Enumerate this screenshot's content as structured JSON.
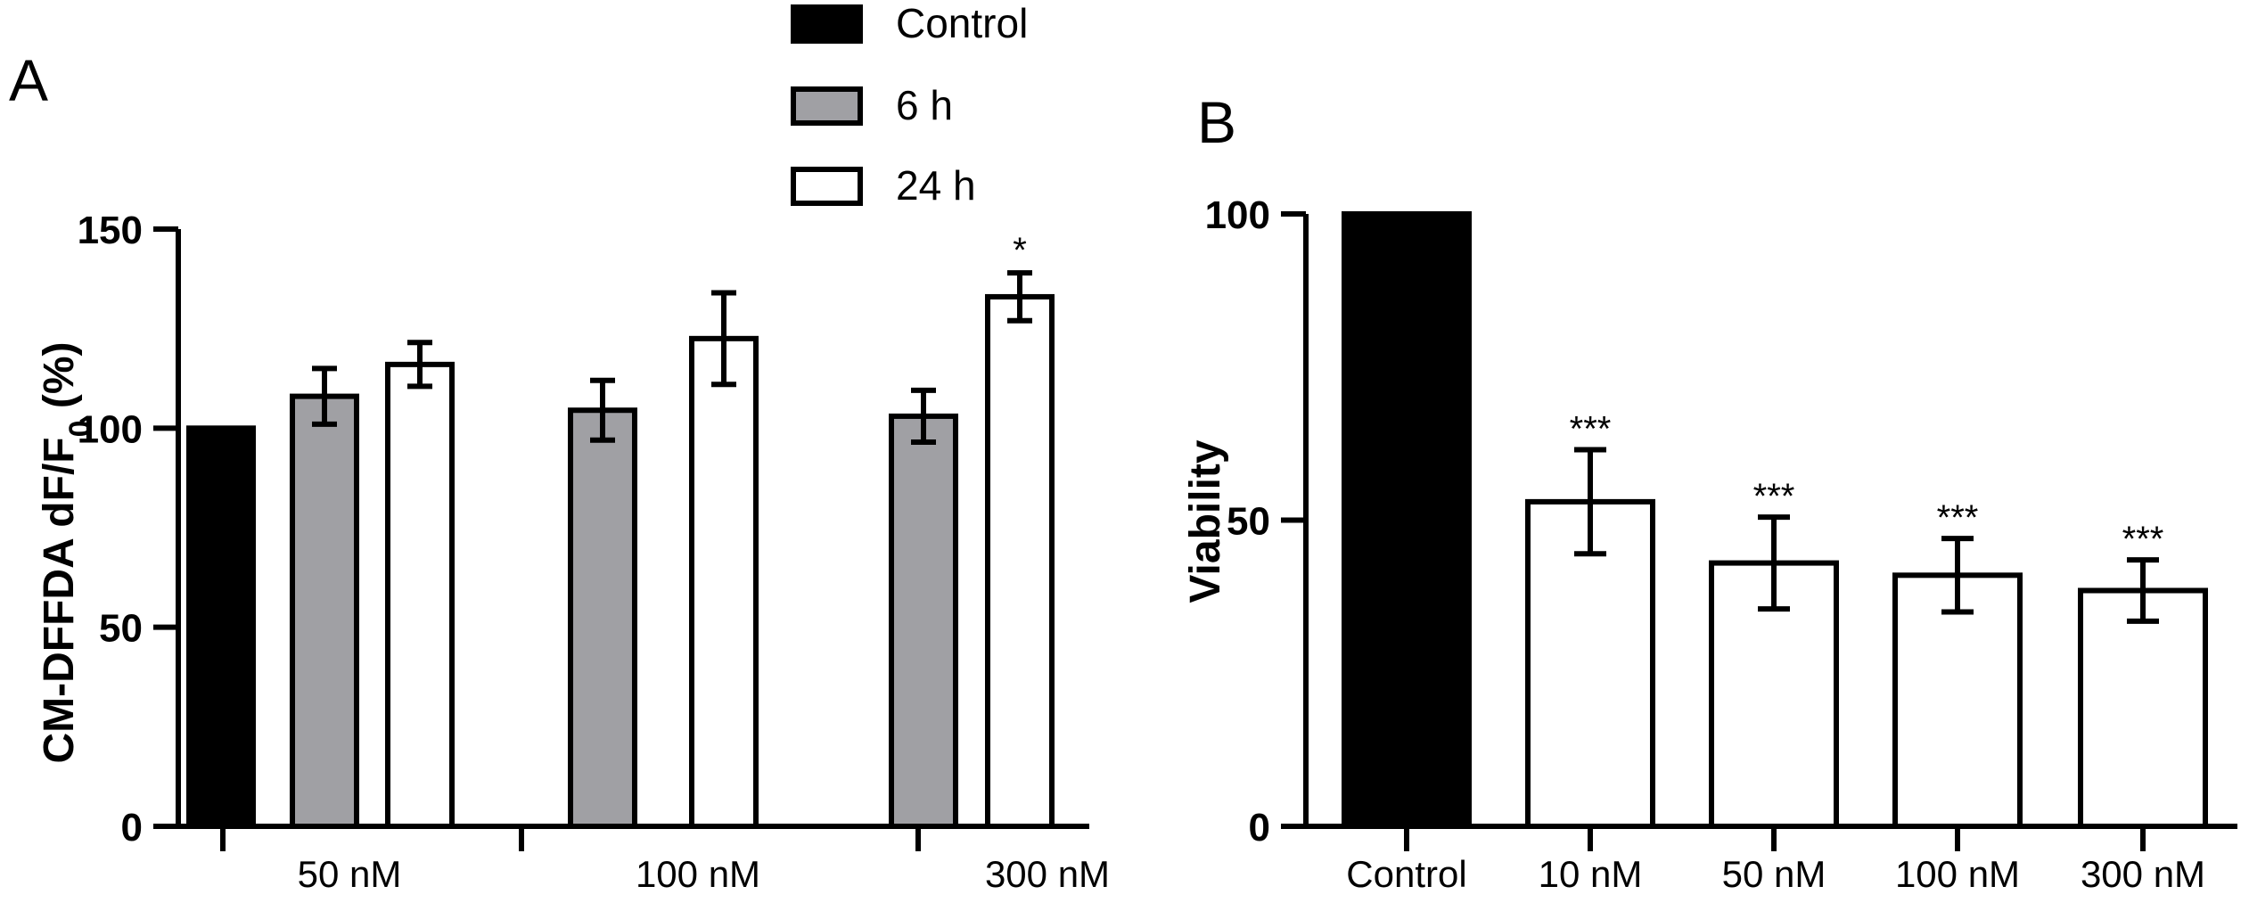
{
  "chart_data": [
    {
      "panel": "A",
      "type": "bar",
      "ylabel": "CM-DFFDA dF/F",
      "ylabel_sub": "0",
      "ylabel_suffix": " (%)",
      "ylim": [
        0,
        150
      ],
      "yticks": [
        "0",
        "50",
        "100",
        "150"
      ],
      "categories": [
        "50 nM",
        "100 nM",
        "300 nM"
      ],
      "legend": [
        {
          "name": "Control",
          "color": "#000000"
        },
        {
          "name": "6 h",
          "color": "#a0a0a4"
        },
        {
          "name": "24 h",
          "color": "#ffffff"
        }
      ],
      "bars": [
        {
          "series": "Control",
          "group": 0,
          "value": 100,
          "error": 0,
          "sig": ""
        },
        {
          "series": "6 h",
          "group": 0,
          "value": 108,
          "error": 7,
          "sig": ""
        },
        {
          "series": "24 h",
          "group": 0,
          "value": 116,
          "error": 5.5,
          "sig": ""
        },
        {
          "series": "6 h",
          "group": 1,
          "value": 104.5,
          "error": 7.5,
          "sig": ""
        },
        {
          "series": "24 h",
          "group": 1,
          "value": 122.5,
          "error": 11.5,
          "sig": ""
        },
        {
          "series": "6 h",
          "group": 2,
          "value": 103,
          "error": 6.5,
          "sig": ""
        },
        {
          "series": "24 h",
          "group": 2,
          "value": 133,
          "error": 6,
          "sig": "*"
        }
      ]
    },
    {
      "panel": "B",
      "type": "bar",
      "ylabel": "Viability",
      "ylim": [
        0,
        100
      ],
      "yticks": [
        "0",
        "50",
        "100"
      ],
      "categories": [
        "Control",
        "10 nM",
        "50 nM",
        "100 nM",
        "300 nM"
      ],
      "values": [
        100,
        53,
        43,
        41,
        38.5
      ],
      "errors": [
        0,
        8.5,
        7.5,
        6,
        5
      ],
      "fills": [
        "#000000",
        "#ffffff",
        "#ffffff",
        "#ffffff",
        "#ffffff"
      ],
      "sig": [
        "",
        "***",
        "***",
        "***",
        "***"
      ]
    }
  ]
}
